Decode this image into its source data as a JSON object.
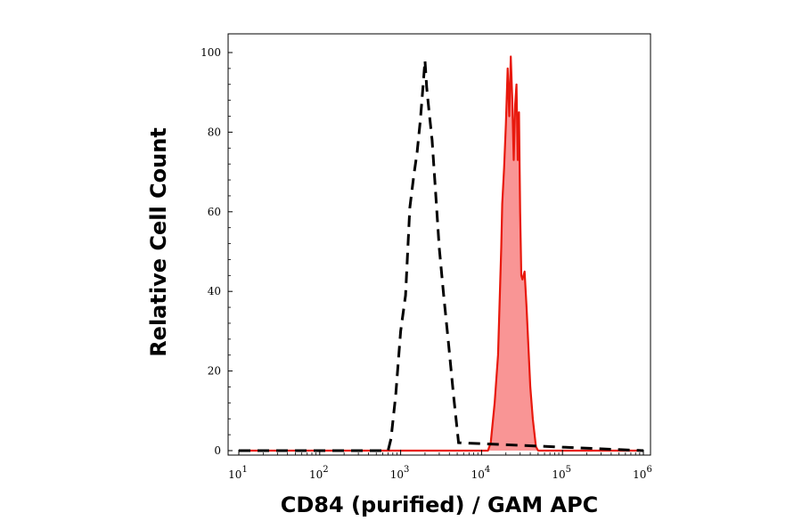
{
  "chart_data": {
    "type": "area",
    "xlabel": "CD84 (purified) / GAM APC",
    "ylabel": "Relative Cell Count",
    "x_scale": "log",
    "xlim": [
      10,
      1000000
    ],
    "ylim": [
      0,
      100
    ],
    "x_ticks": [
      {
        "base": "10",
        "exp": "1",
        "value": 10
      },
      {
        "base": "10",
        "exp": "2",
        "value": 100
      },
      {
        "base": "10",
        "exp": "3",
        "value": 1000
      },
      {
        "base": "10",
        "exp": "4",
        "value": 10000
      },
      {
        "base": "10",
        "exp": "5",
        "value": 100000
      },
      {
        "base": "10",
        "exp": "6",
        "value": 1000000
      }
    ],
    "y_ticks": [
      "0",
      "20",
      "40",
      "60",
      "80",
      "100"
    ],
    "y_tick_values": [
      0,
      20,
      40,
      60,
      80,
      100
    ],
    "grid": false,
    "legend": "none",
    "series": [
      {
        "style": "dashed-black",
        "color": "#000000",
        "filled": false,
        "x": [
          10,
          700,
          760,
          870,
          1000,
          1150,
          1300,
          1450,
          1600,
          1750,
          1900,
          2000,
          2100,
          2250,
          2450,
          2700,
          3000,
          3400,
          3900,
          4500,
          5200,
          1000000
        ],
        "y": [
          0,
          0,
          3,
          14,
          30,
          39,
          61,
          69,
          75,
          83,
          92,
          98,
          91,
          85,
          78,
          65,
          51,
          39,
          27,
          14,
          2,
          0
        ]
      },
      {
        "style": "filled-red",
        "color": "#e8180c",
        "fill": "#f99595",
        "filled": true,
        "x": [
          10,
          12000,
          13000,
          14500,
          16000,
          17500,
          18000,
          19000,
          20000,
          21000,
          22000,
          23000,
          24000,
          25000,
          26000,
          27000,
          28000,
          29000,
          30000,
          31000,
          32000,
          34000,
          36000,
          38000,
          40000,
          43000,
          47000,
          50000,
          1000000
        ],
        "y": [
          0,
          0,
          2,
          12,
          24,
          51,
          62,
          71,
          82,
          96,
          84,
          99,
          88,
          73,
          87,
          92,
          73,
          85,
          60,
          44,
          43,
          45,
          36,
          26,
          16,
          8,
          1,
          0,
          0
        ]
      }
    ]
  }
}
